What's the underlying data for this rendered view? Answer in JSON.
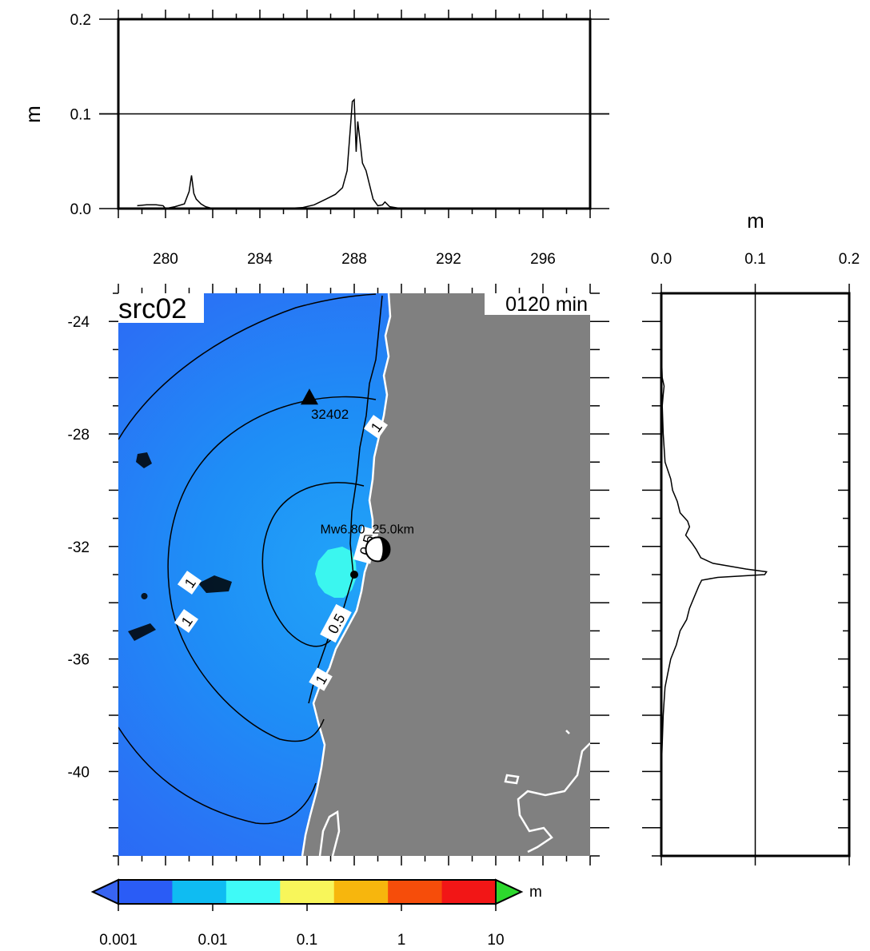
{
  "chart_data": [
    {
      "type": "line",
      "id": "top-profile",
      "ylabel": "m",
      "xlim": [
        278,
        298
      ],
      "ylim": [
        0,
        0.2
      ],
      "x_ticks": [
        "280",
        "284",
        "288",
        "292",
        "296"
      ],
      "y_ticks": [
        "0.0",
        "0.1",
        "0.2"
      ],
      "grid_y": [
        0.1
      ],
      "series": [
        {
          "x": [
            278.8,
            279.2,
            279.6,
            279.9,
            280.0,
            280.4,
            280.8,
            281.0,
            281.1,
            281.2,
            281.3,
            281.5,
            281.7,
            282.0,
            283.0,
            284.0,
            285.0,
            285.8,
            286.3,
            286.8,
            287.2,
            287.5,
            287.7,
            287.85,
            287.92,
            288.0,
            288.08,
            288.15,
            288.25,
            288.35,
            288.5,
            288.65,
            288.8,
            289.0,
            289.2,
            289.3,
            289.5,
            290.0,
            292.0,
            296.0
          ],
          "y": [
            0.003,
            0.004,
            0.004,
            0.003,
            0.0,
            0.002,
            0.005,
            0.018,
            0.035,
            0.016,
            0.01,
            0.005,
            0.002,
            0.0,
            0.0,
            0.0,
            0.0,
            0.001,
            0.004,
            0.01,
            0.015,
            0.022,
            0.04,
            0.09,
            0.113,
            0.115,
            0.06,
            0.092,
            0.07,
            0.048,
            0.04,
            0.025,
            0.01,
            0.003,
            0.004,
            0.007,
            0.002,
            0.0,
            0.0,
            0.0
          ]
        }
      ]
    },
    {
      "type": "heatmap",
      "id": "map",
      "title": "src02",
      "time_label": "0120 min",
      "xlim": [
        278,
        298
      ],
      "ylim": [
        -43,
        -23
      ],
      "x_ticks": [
        "280",
        "284",
        "288",
        "292",
        "296"
      ],
      "y_ticks": [
        "-24",
        "-28",
        "-32",
        "-36",
        "-40"
      ],
      "station": {
        "name": "32402",
        "lon": 286.1,
        "lat": -26.7
      },
      "epicenter": {
        "label": "Mw6.80_25.0km",
        "lon": 289.0,
        "lat": -32.1
      },
      "source_point": {
        "lon": 288.0,
        "lat": -33.0
      },
      "contour_labels": [
        "1",
        "1",
        "1",
        "0.5",
        "1",
        "0.5"
      ],
      "land_color": "#808080",
      "ocean_color": "#2a66f5",
      "near_field_color": "#3bf6ef",
      "colorbar": {
        "unit": "m",
        "ticks": [
          "0.001",
          "0.01",
          "0.1",
          "1",
          "10"
        ],
        "colors": [
          "#2a5cf6",
          "#0fbcf2",
          "#3ffaf7",
          "#f8f65a",
          "#f7b60d",
          "#f64d0a",
          "#f21616"
        ],
        "under_color": "#3864f2",
        "over_color": "#2dd82d"
      }
    },
    {
      "type": "line",
      "id": "side-profile",
      "xlabel": "m",
      "xlim": [
        0,
        0.2
      ],
      "ylim": [
        -43,
        -23
      ],
      "x_ticks": [
        "0.0",
        "0.1",
        "0.2"
      ],
      "grid_x": [
        0.1
      ],
      "series": [
        {
          "lat": [
            -23.0,
            -25.0,
            -26.0,
            -26.3,
            -26.6,
            -27.0,
            -28.0,
            -29.0,
            -29.6,
            -30.0,
            -30.4,
            -30.8,
            -31.1,
            -31.3,
            -31.6,
            -31.9,
            -32.1,
            -32.4,
            -32.6,
            -32.8,
            -32.9,
            -33.0,
            -33.1,
            -33.2,
            -33.4,
            -33.8,
            -34.2,
            -34.6,
            -35.0,
            -35.5,
            -36.0,
            -36.5,
            -37.0,
            -37.5,
            -38.0,
            -39.0,
            -40.0,
            -42.0,
            -43.0
          ],
          "val": [
            0.0,
            0.0,
            0.001,
            0.003,
            0.002,
            0.001,
            0.002,
            0.004,
            0.01,
            0.012,
            0.017,
            0.02,
            0.028,
            0.03,
            0.026,
            0.033,
            0.037,
            0.042,
            0.055,
            0.09,
            0.112,
            0.11,
            0.06,
            0.043,
            0.04,
            0.035,
            0.03,
            0.027,
            0.02,
            0.016,
            0.01,
            0.007,
            0.004,
            0.003,
            0.002,
            0.001,
            0.0,
            0.0,
            0.0
          ]
        }
      ]
    }
  ]
}
